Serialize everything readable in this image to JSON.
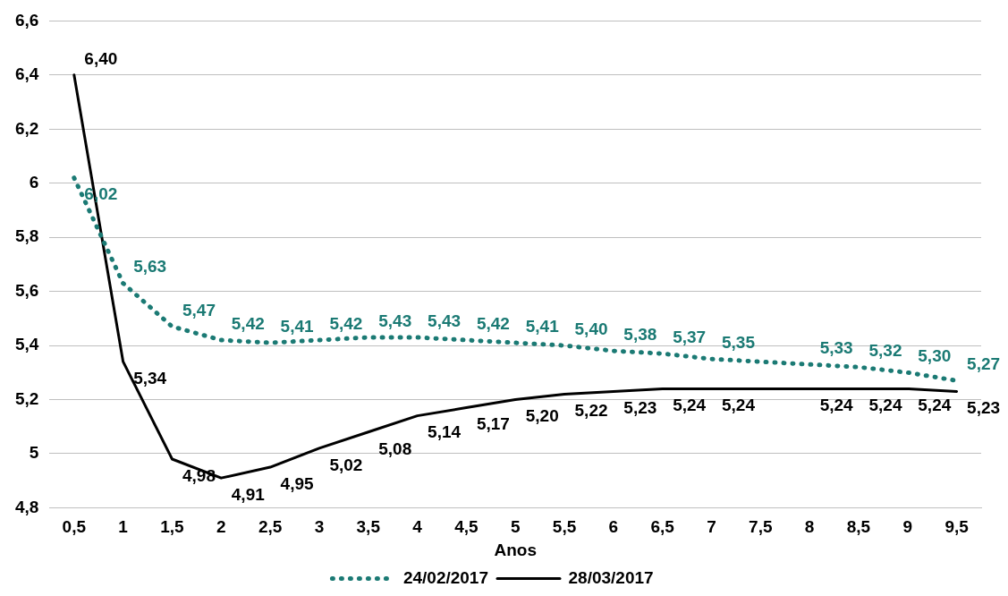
{
  "chart_data": {
    "type": "line",
    "xlabel": "Anos",
    "categories": [
      "0,5",
      "1",
      "1,5",
      "2",
      "2,5",
      "3",
      "3,5",
      "4",
      "4,5",
      "5",
      "5,5",
      "6",
      "6,5",
      "7",
      "7,5",
      "8",
      "8,5",
      "9",
      "9,5"
    ],
    "series": [
      {
        "name": "24/02/2017",
        "color": "#1b7a74",
        "line_style": "dotted",
        "values": [
          6.02,
          5.63,
          5.47,
          5.42,
          5.41,
          5.42,
          5.43,
          5.43,
          5.42,
          5.41,
          5.4,
          5.38,
          5.37,
          5.35,
          5.34,
          5.33,
          5.32,
          5.3,
          5.27
        ],
        "value_labels": [
          "6,02",
          "5,63",
          "5,47",
          "5,42",
          "5,41",
          "5,42",
          "5,43",
          "5,43",
          "5,42",
          "5,41",
          "5,40",
          "5,38",
          "5,37",
          "5,35",
          null,
          "5,33",
          "5,32",
          "5,30",
          "5,27"
        ]
      },
      {
        "name": "28/03/2017",
        "color": "#000000",
        "line_style": "solid",
        "values": [
          6.4,
          5.34,
          4.98,
          4.91,
          4.95,
          5.02,
          5.08,
          5.14,
          5.17,
          5.2,
          5.22,
          5.23,
          5.24,
          5.24,
          5.24,
          5.24,
          5.24,
          5.24,
          5.23
        ],
        "value_labels": [
          "6,40",
          "5,34",
          "4,98",
          "4,91",
          "4,95",
          "5,02",
          "5,08",
          "5,14",
          "5,17",
          "5,20",
          "5,22",
          "5,23",
          "5,24",
          "5,24",
          null,
          "5,24",
          "5,24",
          "5,24",
          "5,23"
        ]
      }
    ],
    "ylim": [
      4.8,
      6.6
    ],
    "yticks": [
      {
        "value": 4.8,
        "label": "4,8"
      },
      5,
      {
        "value": 5.2,
        "label": "5,2"
      },
      {
        "value": 5.4,
        "label": "5,4"
      },
      {
        "value": 5.6,
        "label": "5,6"
      },
      {
        "value": 5.8,
        "label": "5,8"
      },
      6,
      {
        "value": 6.2,
        "label": "6,2"
      },
      {
        "value": 6.4,
        "label": "6,4"
      },
      {
        "value": 6.6,
        "label": "6,6"
      }
    ],
    "grid": "y",
    "legend": "bottom",
    "marker": "none"
  }
}
